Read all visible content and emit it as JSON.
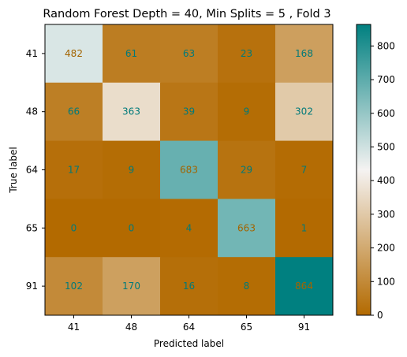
{
  "chart_data": {
    "type": "heatmap",
    "title": "Random Forest Depth = 40, Min Splits = 5 , Fold 3",
    "xlabel": "Predicted label",
    "ylabel": "True label",
    "x_categories": [
      "41",
      "48",
      "64",
      "65",
      "91"
    ],
    "y_categories": [
      "41",
      "48",
      "64",
      "65",
      "91"
    ],
    "values": [
      [
        482,
        61,
        63,
        23,
        168
      ],
      [
        66,
        363,
        39,
        9,
        302
      ],
      [
        17,
        9,
        683,
        29,
        7
      ],
      [
        0,
        0,
        4,
        663,
        1
      ],
      [
        102,
        170,
        16,
        8,
        864
      ]
    ],
    "colormap": "BrBG",
    "vmin": 0,
    "vmax": 864,
    "colorbar_ticks": [
      0,
      100,
      200,
      300,
      400,
      500,
      600,
      700,
      800
    ],
    "colors": {
      "low": "#b36a00",
      "mid": "#f5f3f2",
      "high": "#008080",
      "text_on_low": "#007a7a",
      "text_on_high": "#a36400"
    }
  }
}
